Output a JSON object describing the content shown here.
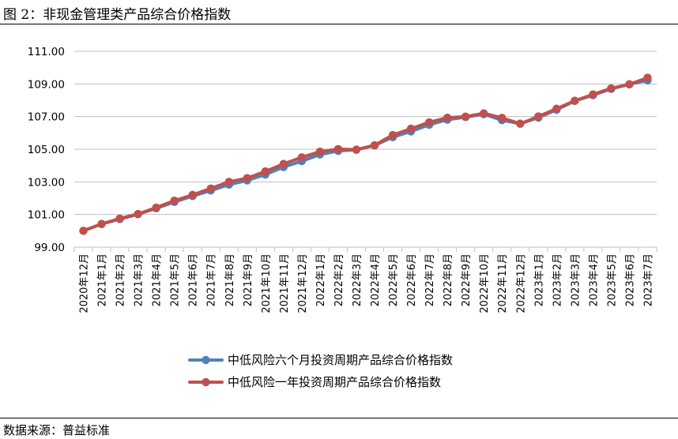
{
  "figure": {
    "title": "图 2：非现金管理类产品综合价格指数",
    "source": "数据来源：普益标准"
  },
  "colors": {
    "series1": "#4f81bd",
    "series2": "#c0504d",
    "grid": "#bfbfbf"
  },
  "chart_data": {
    "type": "line",
    "title": "",
    "xlabel": "",
    "ylabel": "",
    "ylim": [
      99.0,
      111.0
    ],
    "yticks": [
      "99.00",
      "101.00",
      "103.00",
      "105.00",
      "107.00",
      "109.00",
      "111.00"
    ],
    "grid": true,
    "legend_position": "bottom",
    "categories": [
      "2020年12月",
      "2021年1月",
      "2021年2月",
      "2021年3月",
      "2021年4月",
      "2021年5月",
      "2021年6月",
      "2021年7月",
      "2021年8月",
      "2021年9月",
      "2021年10月",
      "2021年11月",
      "2021年12月",
      "2022年1月",
      "2022年2月",
      "2022年3月",
      "2022年4月",
      "2022年5月",
      "2022年6月",
      "2022年7月",
      "2022年8月",
      "2022年9月",
      "2022年10月",
      "2022年11月",
      "2022年12月",
      "2023年1月",
      "2023年2月",
      "2023年3月",
      "2023年4月",
      "2023年5月",
      "2023年6月",
      "2023年7月"
    ],
    "series": [
      {
        "name": "中低风险六个月投资周期产品综合价格指数",
        "values": [
          100.0,
          100.42,
          100.72,
          101.02,
          101.38,
          101.77,
          102.13,
          102.47,
          102.83,
          103.09,
          103.45,
          103.91,
          104.27,
          104.68,
          104.9,
          104.97,
          105.23,
          105.74,
          106.09,
          106.5,
          106.81,
          106.97,
          107.15,
          106.78,
          106.57,
          106.94,
          107.42,
          107.96,
          108.31,
          108.7,
          108.98,
          109.22
        ]
      },
      {
        "name": "中低风险一年投资周期产品综合价格指数",
        "values": [
          100.0,
          100.42,
          100.75,
          101.03,
          101.42,
          101.85,
          102.2,
          102.59,
          103.0,
          103.23,
          103.64,
          104.1,
          104.5,
          104.85,
          105.01,
          104.97,
          105.24,
          105.87,
          106.26,
          106.65,
          106.93,
          107.0,
          107.2,
          106.92,
          106.56,
          107.01,
          107.48,
          107.97,
          108.36,
          108.73,
          108.98,
          109.38
        ]
      }
    ]
  }
}
